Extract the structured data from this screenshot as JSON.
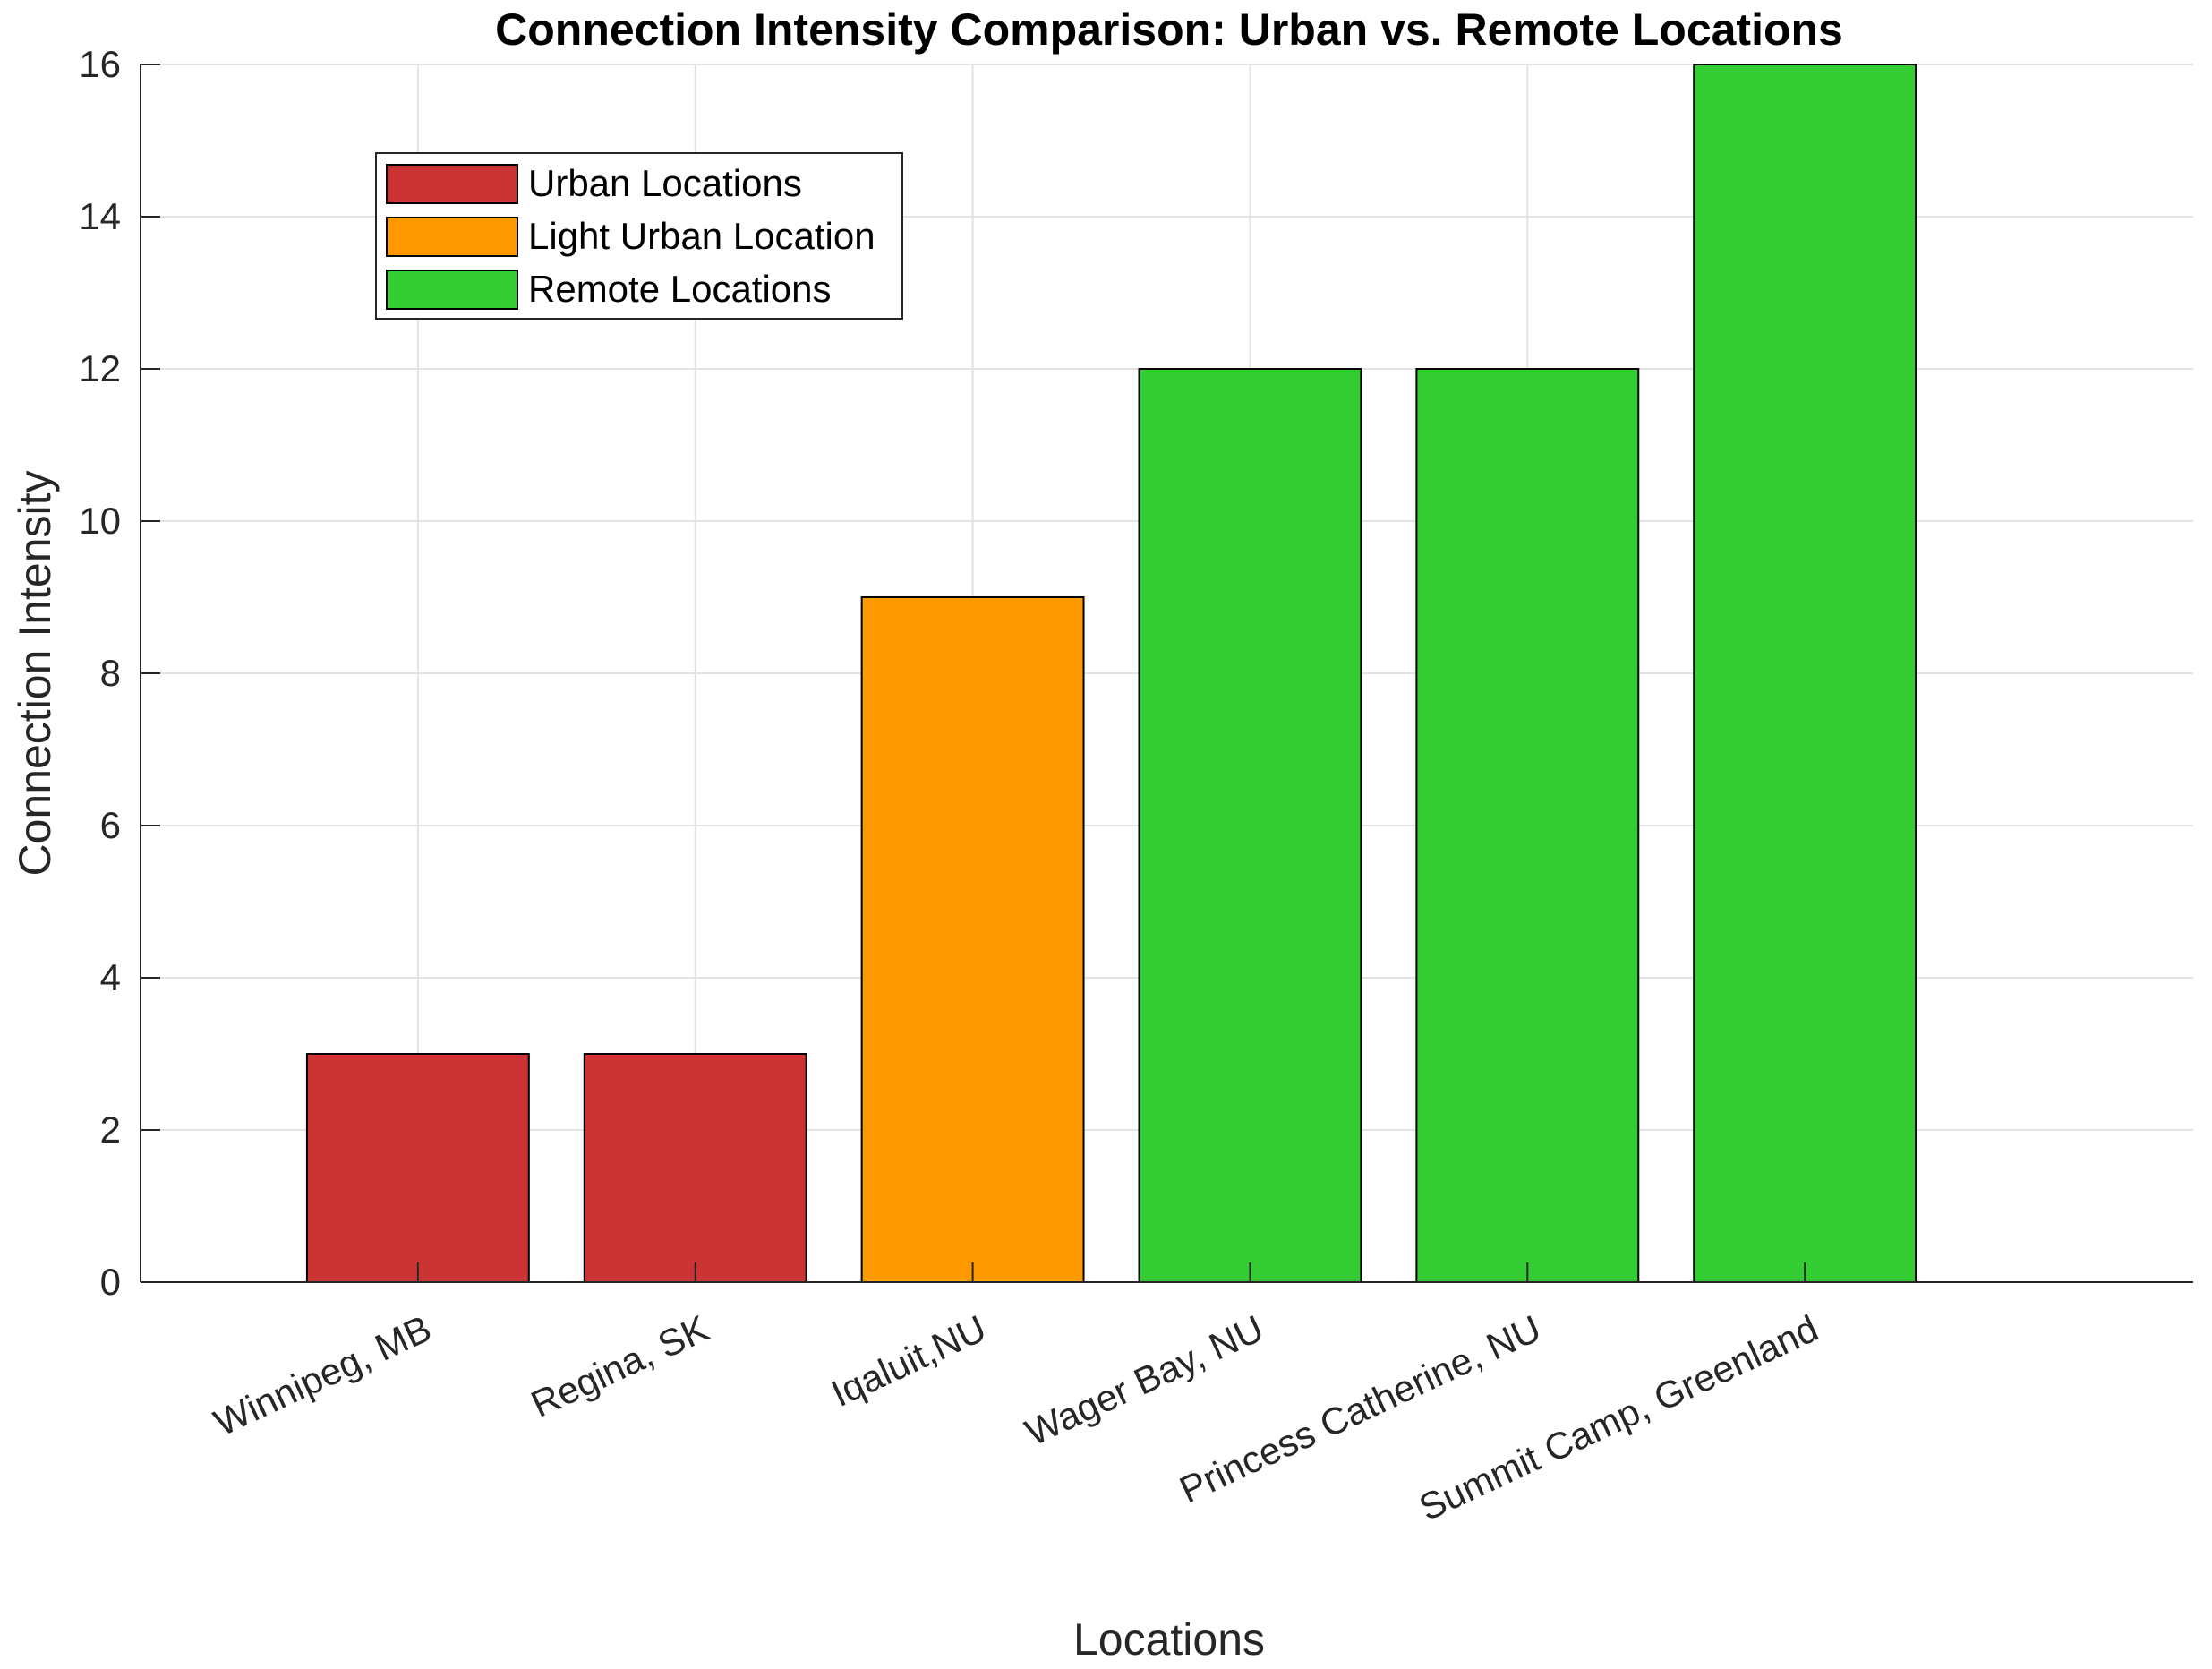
{
  "chart_data": {
    "type": "bar",
    "title": "Connection Intensity Comparison: Urban vs. Remote Locations",
    "xlabel": "Locations",
    "ylabel": "Connection Intensity",
    "categories": [
      "Winnipeg, MB",
      "Regina, SK",
      "Iqaluit,NU",
      "Wager Bay, NU",
      "Princess Catherine, NU",
      "Summit Camp, Greenland"
    ],
    "values": [
      3,
      3,
      9,
      12,
      12,
      16
    ],
    "bar_groups": [
      0,
      0,
      1,
      2,
      2,
      2
    ],
    "ylim": [
      0,
      16
    ],
    "yticks": [
      0,
      2,
      4,
      6,
      8,
      10,
      12,
      14,
      16
    ],
    "xlim": [
      0,
      7.4
    ],
    "grid": true,
    "legend": {
      "placement": "top-left",
      "entries": [
        {
          "label": "Urban Locations",
          "color": "#cc3333"
        },
        {
          "label": "Light Urban Location",
          "color": "#ff9900"
        },
        {
          "label": "Remote Locations",
          "color": "#33cc33"
        }
      ]
    }
  }
}
